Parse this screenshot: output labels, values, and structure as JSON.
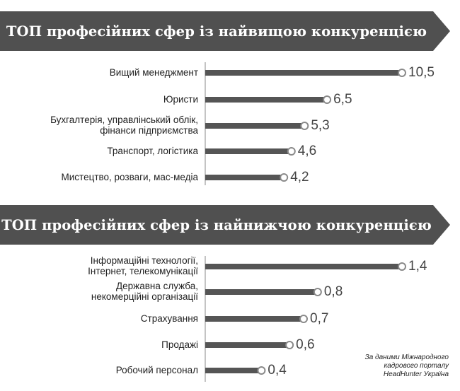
{
  "colors": {
    "banner": "#505050",
    "bar": "#555555",
    "dot_fill": "#ffffff",
    "dot_stroke": "#8a8a8a"
  },
  "chart_data": [
    {
      "type": "bar",
      "orientation": "horizontal",
      "title": "ТОП професійних сфер із найвищою конкуренцією",
      "categories": [
        [
          "Вищий менеджмент"
        ],
        [
          "Юристи"
        ],
        [
          "Бухгалтерія, управлінський облік,",
          "фінанси підприємства"
        ],
        [
          "Транспорт, логістика"
        ],
        [
          "Мистецтво, розваги, мас-медіа"
        ]
      ],
      "values": [
        10.5,
        6.5,
        5.3,
        4.6,
        4.2
      ],
      "value_labels": [
        "10,5",
        "6,5",
        "5,3",
        "4,6",
        "4,2"
      ],
      "xlim": [
        0,
        10.5
      ]
    },
    {
      "type": "bar",
      "orientation": "horizontal",
      "title": "ТОП професійних сфер із найнижчою конкуренцією",
      "categories": [
        [
          "Інформаційні технології,",
          "Інтернет, телекомунікації"
        ],
        [
          "Державна служба,",
          "некомерційні організації"
        ],
        [
          "Страхування"
        ],
        [
          "Продажі"
        ],
        [
          "Робочий персонал"
        ]
      ],
      "values": [
        1.4,
        0.8,
        0.7,
        0.6,
        0.4
      ],
      "value_labels": [
        "1,4",
        "0,8",
        "0,7",
        "0,6",
        "0,4"
      ],
      "xlim": [
        0,
        1.4
      ]
    }
  ],
  "source": [
    "За даними Міжнародного",
    "кадрового порталу",
    "HeadHunter Україна"
  ]
}
